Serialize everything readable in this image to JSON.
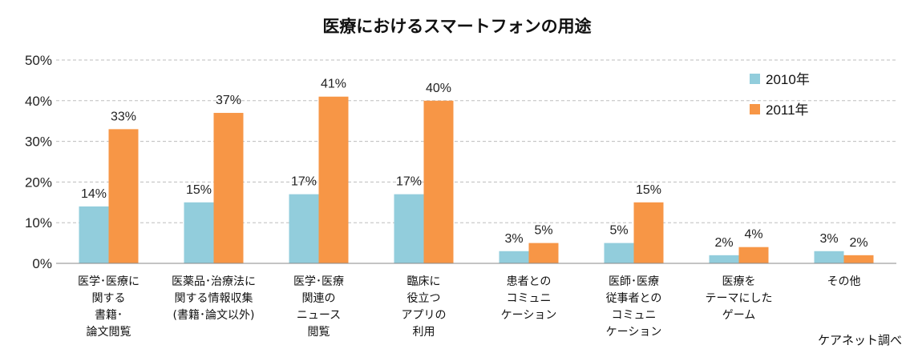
{
  "chart_data": {
    "type": "bar",
    "title": "医療におけるスマートフォンの用途",
    "categories": [
      [
        "医学･医療に",
        "関する",
        "書籍･",
        "論文閲覧"
      ],
      [
        "医薬品･治療法に",
        "関する情報収集",
        "(書籍･論文以外)"
      ],
      [
        "医学･医療",
        "関連の",
        "ニュース",
        "閲覧"
      ],
      [
        "臨床に",
        "役立つ",
        "アプリの",
        "利用"
      ],
      [
        "患者との",
        "コミュニ",
        "ケーション"
      ],
      [
        "医師･医療",
        "従事者との",
        "コミュニ",
        "ケーション"
      ],
      [
        "医療を",
        "テーマにした",
        "ゲーム"
      ],
      [
        "その他"
      ]
    ],
    "series": [
      {
        "name": "2010年",
        "color": "#92CDDC",
        "values": [
          14,
          15,
          17,
          17,
          3,
          5,
          2,
          3
        ],
        "labels": [
          "14%",
          "15%",
          "17%",
          "17%",
          "3%",
          "5%",
          "2%",
          "3%"
        ]
      },
      {
        "name": "2011年",
        "color": "#F79646",
        "values": [
          33,
          37,
          41,
          40,
          5,
          15,
          4,
          2
        ],
        "labels": [
          "33%",
          "37%",
          "41%",
          "40%",
          "5%",
          "15%",
          "4%",
          "2%"
        ]
      }
    ],
    "ylim": [
      0,
      50
    ],
    "yticks": [
      0,
      10,
      20,
      30,
      40,
      50
    ],
    "ytick_labels": [
      "0%",
      "10%",
      "20%",
      "30%",
      "40%",
      "50%"
    ],
    "grid": true,
    "legend_position": "top-right",
    "source_note": "ケアネット調べ"
  }
}
